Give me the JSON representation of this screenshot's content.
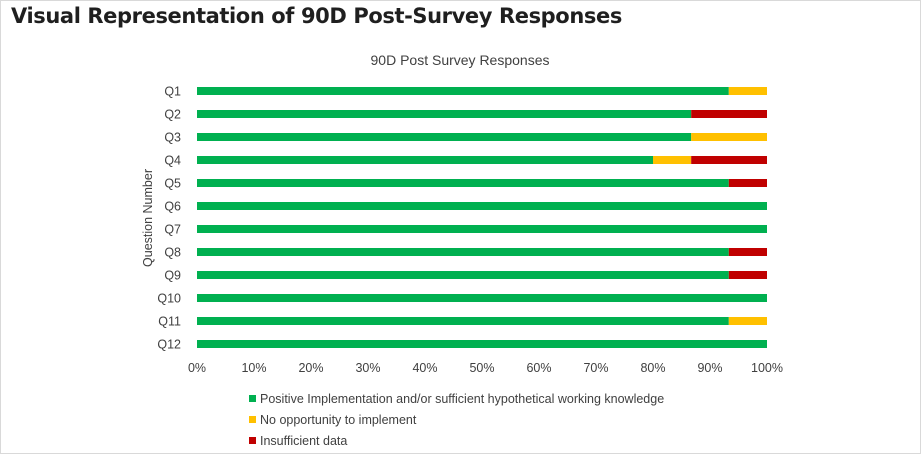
{
  "heading": "Visual Representation of 90D Post-Survey Responses",
  "chart_data": {
    "type": "bar",
    "orientation": "horizontal",
    "stacked": true,
    "title": "90D Post Survey Responses",
    "xlabel": "",
    "ylabel": "Question Number",
    "xlim": [
      0,
      100
    ],
    "x_ticks": [
      "0%",
      "10%",
      "20%",
      "30%",
      "40%",
      "50%",
      "60%",
      "70%",
      "80%",
      "90%",
      "100%"
    ],
    "categories": [
      "Q1",
      "Q2",
      "Q3",
      "Q4",
      "Q5",
      "Q6",
      "Q7",
      "Q8",
      "Q9",
      "Q10",
      "Q11",
      "Q12"
    ],
    "series": [
      {
        "name": "Positive Implementation and/or sufficient hypothetical working knowledge",
        "color": "#00b050",
        "values": [
          93.3,
          86.7,
          86.7,
          80.0,
          93.3,
          100,
          100,
          93.3,
          93.3,
          100,
          93.3,
          100
        ]
      },
      {
        "name": "No opportunity to implement",
        "color": "#ffc000",
        "values": [
          6.7,
          0,
          13.3,
          6.7,
          0,
          0,
          0,
          0,
          0,
          0,
          6.7,
          0
        ]
      },
      {
        "name": "Insufficient data",
        "color": "#c00000",
        "values": [
          0,
          13.3,
          0,
          13.3,
          6.7,
          0,
          0,
          6.7,
          6.7,
          0,
          0,
          0
        ]
      }
    ],
    "grid": false,
    "legend_position": "bottom"
  }
}
